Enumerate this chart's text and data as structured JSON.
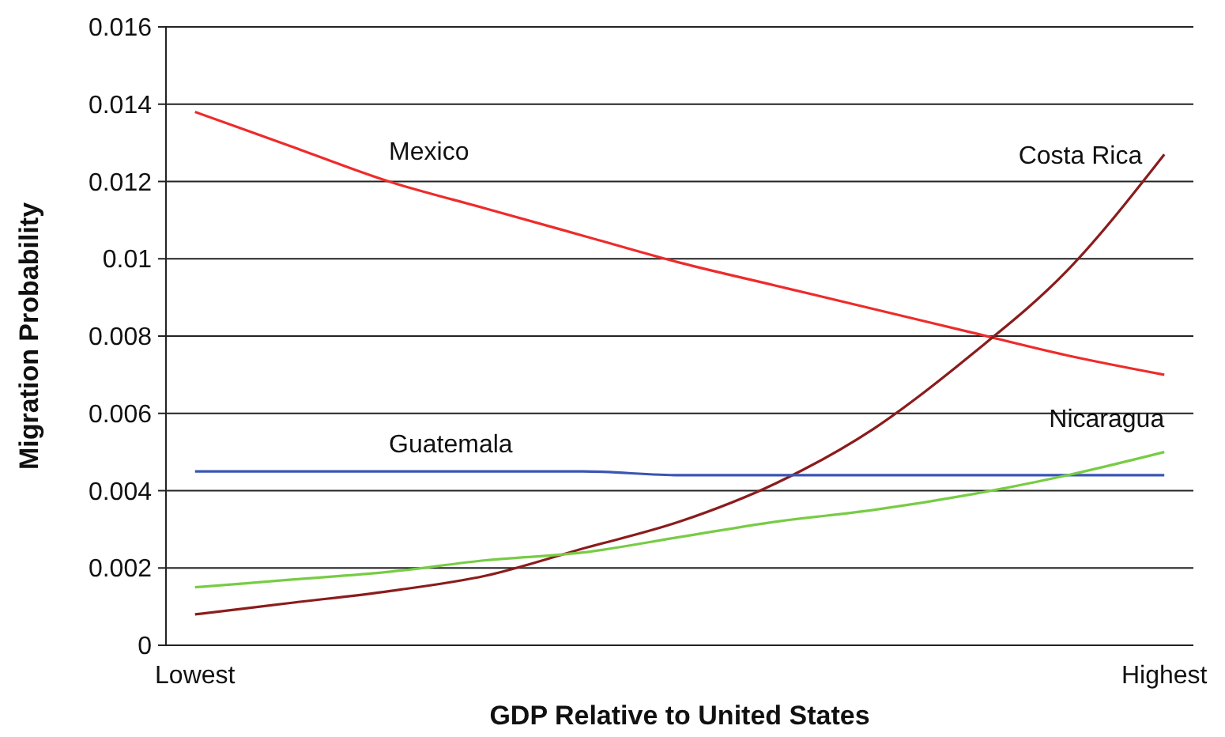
{
  "chart_data": {
    "type": "line",
    "xlabel": "GDP Relative to United States",
    "ylabel": "Migration Probability",
    "categories": [
      "Lowest",
      null,
      null,
      null,
      null,
      null,
      null,
      null,
      null,
      null,
      "Highest"
    ],
    "ylim": [
      0,
      0.016
    ],
    "yticks": [
      0,
      0.002,
      0.004,
      0.006,
      0.008,
      0.01,
      0.012,
      0.014,
      0.016
    ],
    "grid": "y",
    "series": [
      {
        "name": "Mexico",
        "color": "#ee2b2b",
        "values": [
          0.0138,
          0.0129,
          0.012,
          0.0113,
          0.0106,
          0.0099,
          0.0093,
          0.0087,
          0.0081,
          0.0075,
          0.007
        ]
      },
      {
        "name": "Costa Rica",
        "color": "#8b1c1c",
        "values": [
          0.0008,
          0.0011,
          0.0014,
          0.0018,
          0.0025,
          0.0032,
          0.0042,
          0.0056,
          0.0075,
          0.0097,
          0.0127
        ]
      },
      {
        "name": "Guatemala",
        "color": "#3a55b4",
        "values": [
          0.0045,
          0.0045,
          0.0045,
          0.0045,
          0.0045,
          0.0044,
          0.0044,
          0.0044,
          0.0044,
          0.0044,
          0.0044
        ]
      },
      {
        "name": "Nicaragua",
        "color": "#77cc44",
        "values": [
          0.0015,
          0.0017,
          0.0019,
          0.0022,
          0.0024,
          0.0028,
          0.0032,
          0.0035,
          0.0039,
          0.0044,
          0.005
        ]
      }
    ]
  }
}
